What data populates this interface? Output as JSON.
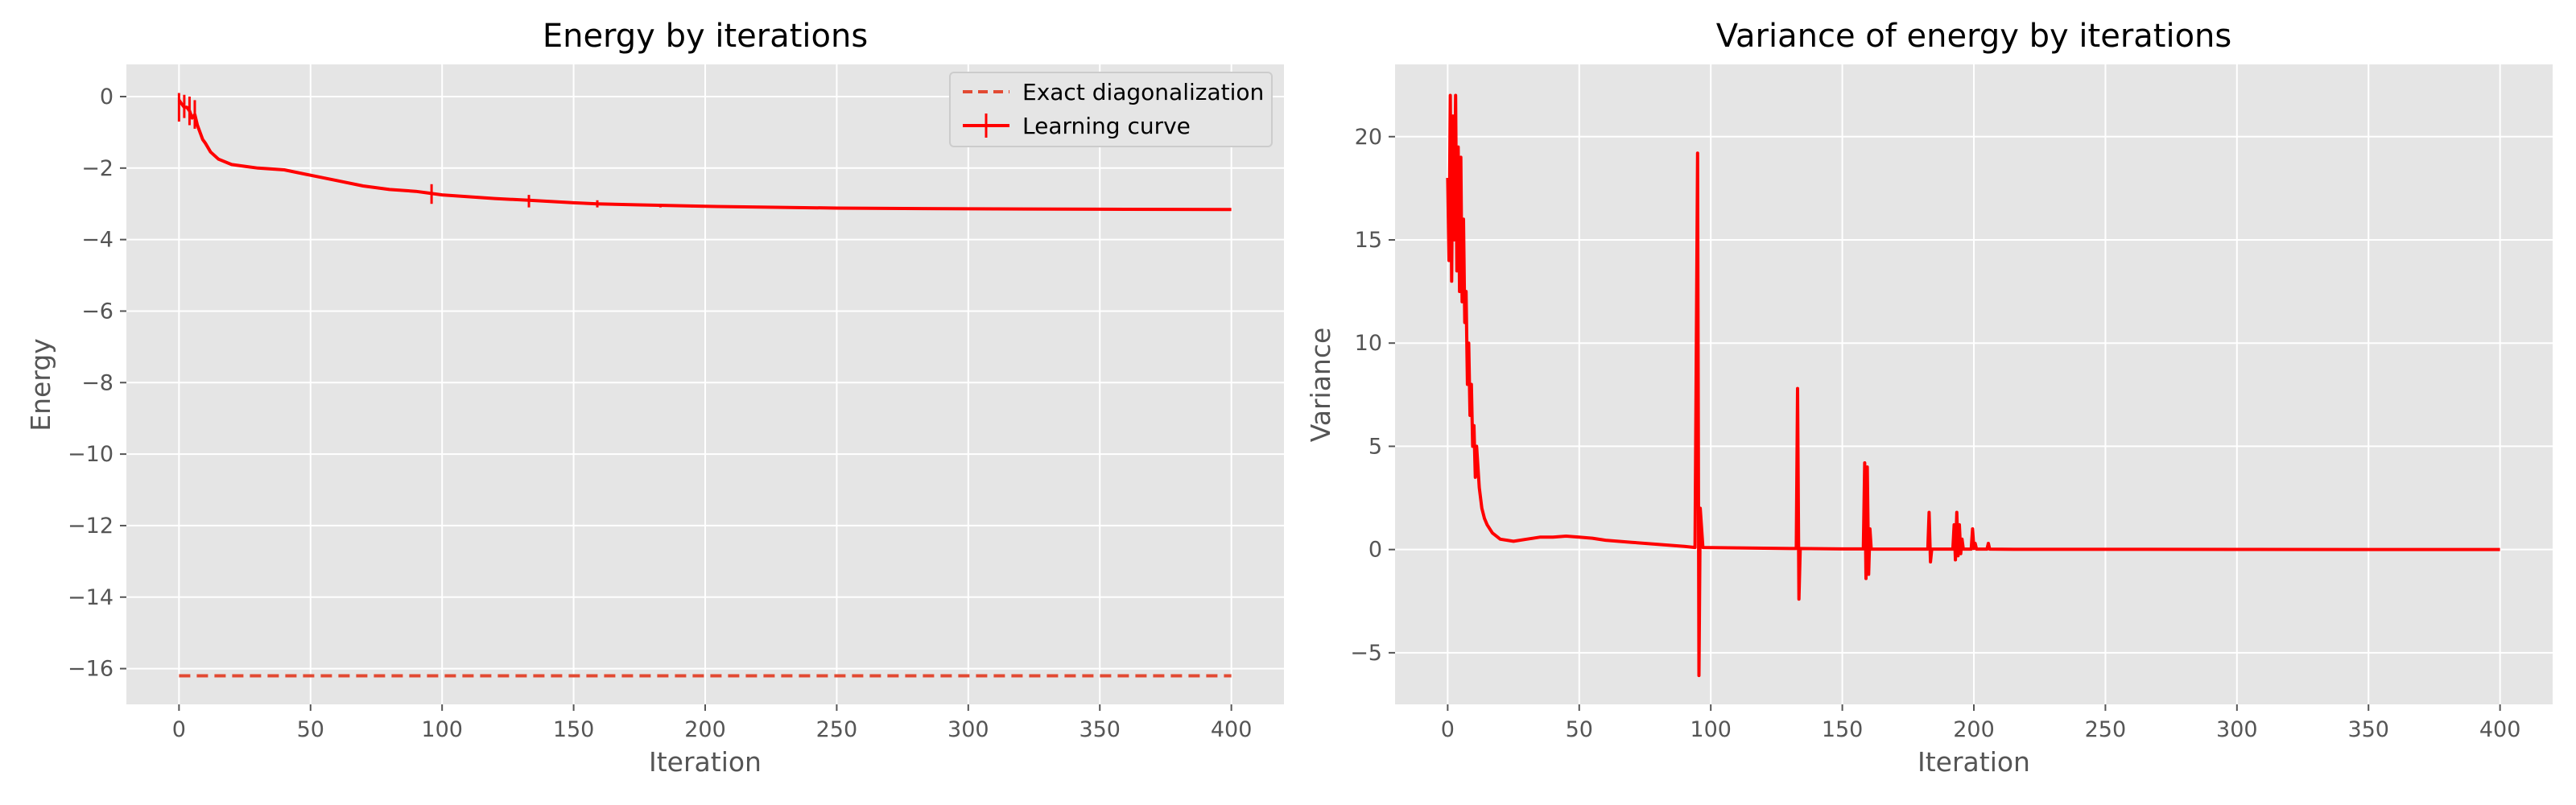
{
  "chart_data": [
    {
      "type": "line",
      "title": "Energy by iterations",
      "xlabel": "Iteration",
      "ylabel": "Energy",
      "xlim": [
        -20,
        420
      ],
      "ylim": [
        -17,
        0.9
      ],
      "xticks": [
        0,
        50,
        100,
        150,
        200,
        250,
        300,
        350,
        400
      ],
      "yticks": [
        0,
        -2,
        -4,
        -6,
        -8,
        -10,
        -12,
        -14,
        -16
      ],
      "xtick_labels": [
        "0",
        "50",
        "100",
        "150",
        "200",
        "250",
        "300",
        "350",
        "400"
      ],
      "ytick_labels": [
        "0",
        "−2",
        "−4",
        "−6",
        "−8",
        "−10",
        "−12",
        "−14",
        "−16"
      ],
      "grid": true,
      "legend_position": "upper right",
      "series": [
        {
          "name": "Exact diagonalization",
          "style": "dashed",
          "color": "#e24a33",
          "x": [
            0,
            400
          ],
          "y": [
            -16.2,
            -16.2
          ]
        },
        {
          "name": "Learning curve",
          "style": "solid with error bars",
          "color": "#ff0000",
          "x": [
            0,
            1,
            2,
            3,
            4,
            5,
            6,
            7,
            8,
            9,
            10,
            12,
            15,
            20,
            25,
            30,
            40,
            50,
            60,
            70,
            80,
            90,
            95,
            100,
            120,
            133,
            150,
            159,
            175,
            200,
            250,
            300,
            350,
            400
          ],
          "y": [
            -0.1,
            -0.2,
            -0.3,
            -0.3,
            -0.4,
            -0.6,
            -0.5,
            -0.8,
            -1.0,
            -1.2,
            -1.3,
            -1.55,
            -1.75,
            -1.9,
            -1.95,
            -2.0,
            -2.05,
            -2.2,
            -2.35,
            -2.5,
            -2.6,
            -2.65,
            -2.7,
            -2.75,
            -2.85,
            -2.9,
            -2.97,
            -3.0,
            -3.03,
            -3.07,
            -3.12,
            -3.14,
            -3.15,
            -3.16
          ],
          "error_spikes": [
            {
              "x": 0,
              "low": -0.7,
              "high": 0.1
            },
            {
              "x": 2,
              "low": -0.6,
              "high": 0.05
            },
            {
              "x": 4,
              "low": -0.8,
              "high": 0.0
            },
            {
              "x": 6,
              "low": -0.9,
              "high": -0.1
            },
            {
              "x": 96,
              "low": -3.0,
              "high": -2.45
            },
            {
              "x": 133,
              "low": -3.1,
              "high": -2.75
            },
            {
              "x": 159,
              "low": -3.1,
              "high": -2.9
            },
            {
              "x": 183,
              "low": -3.1,
              "high": -3.0
            },
            {
              "x": 195,
              "low": -3.1,
              "high": -3.02
            }
          ]
        }
      ]
    },
    {
      "type": "line",
      "title": "Variance of energy by iterations",
      "xlabel": "Iteration",
      "ylabel": "Variance",
      "xlim": [
        -20,
        420
      ],
      "ylim": [
        -7.5,
        23.5
      ],
      "xticks": [
        0,
        50,
        100,
        150,
        200,
        250,
        300,
        350,
        400
      ],
      "yticks": [
        -5,
        0,
        5,
        10,
        15,
        20
      ],
      "xtick_labels": [
        "0",
        "50",
        "100",
        "150",
        "200",
        "250",
        "300",
        "350",
        "400"
      ],
      "ytick_labels": [
        "−5",
        "0",
        "5",
        "10",
        "15",
        "20"
      ],
      "grid": true,
      "series": [
        {
          "color": "#ff0000",
          "style": "solid",
          "x": [
            0,
            0.5,
            1,
            1.5,
            2,
            2.5,
            3,
            3.5,
            4,
            4.5,
            5,
            5.5,
            6,
            6.5,
            7,
            7.5,
            8,
            8.5,
            9,
            9.5,
            10,
            10.5,
            11,
            12,
            13,
            14,
            15,
            17,
            20,
            25,
            30,
            35,
            40,
            45,
            50,
            55,
            60,
            70,
            80,
            90,
            94,
            95,
            95.5,
            96,
            97,
            110,
            130,
            132.5,
            133,
            133.5,
            134,
            150,
            158,
            158.5,
            159,
            159.5,
            160,
            160.5,
            161,
            170,
            182.5,
            183,
            183.5,
            184,
            192,
            192.5,
            193,
            193.5,
            194,
            194.5,
            195,
            195.5,
            196,
            199,
            199.5,
            200,
            200.5,
            201,
            205,
            205.5,
            206,
            215,
            250,
            300,
            350,
            400
          ],
          "y": [
            18,
            14,
            22,
            13,
            21,
            15,
            22,
            13.5,
            19.5,
            12.5,
            19,
            12,
            16,
            11,
            12.5,
            8,
            10,
            6.5,
            8,
            5,
            6,
            3.5,
            5,
            3,
            2,
            1.5,
            1.2,
            0.8,
            0.5,
            0.4,
            0.5,
            0.6,
            0.6,
            0.65,
            0.6,
            0.55,
            0.45,
            0.35,
            0.25,
            0.15,
            0.1,
            19.2,
            -6.1,
            2,
            0.1,
            0.08,
            0.05,
            0.05,
            7.8,
            -2.4,
            0.05,
            0.03,
            0.03,
            4.2,
            -1.4,
            4,
            -1.2,
            1,
            0.02,
            0.02,
            0.02,
            1.8,
            -0.6,
            0.02,
            0.02,
            1.2,
            -0.5,
            1.8,
            -0.3,
            1.2,
            -0.2,
            0.5,
            0.02,
            0.02,
            1,
            0.05,
            0.3,
            0.02,
            0.02,
            0.3,
            0.02,
            0.01,
            0.01,
            0.005,
            0.003,
            0.002
          ]
        }
      ]
    }
  ]
}
